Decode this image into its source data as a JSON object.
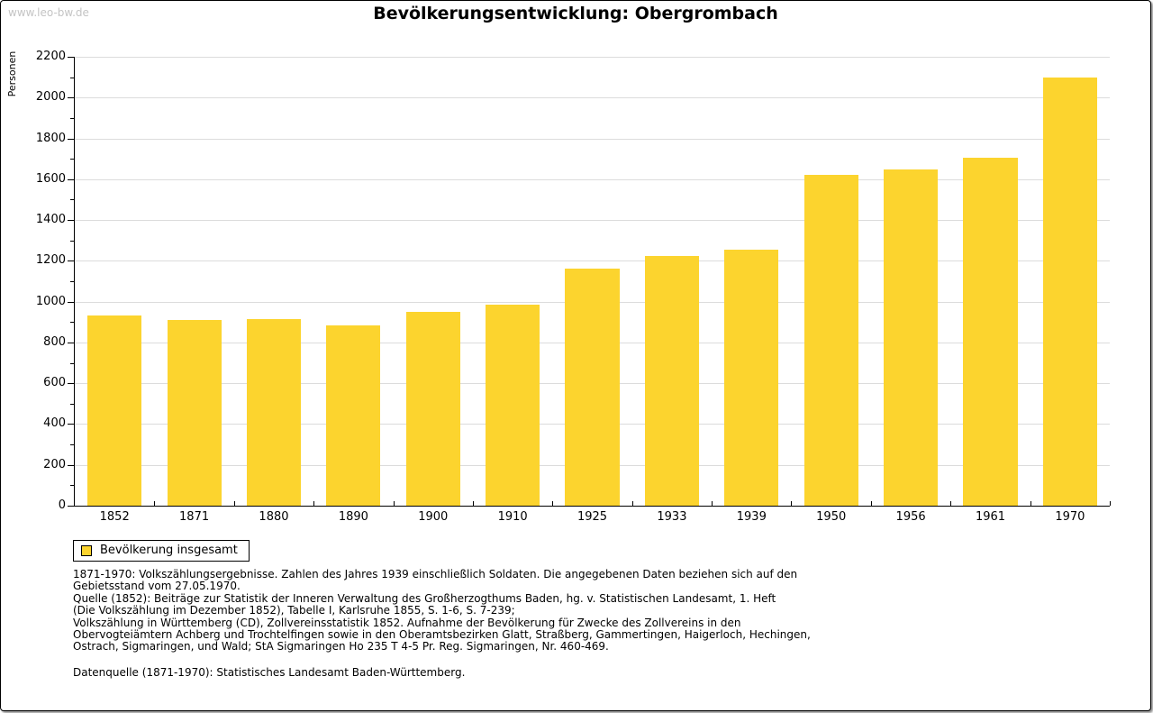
{
  "watermark": "www.leo-bw.de",
  "title": "Bevölkerungsentwicklung: Obergrombach",
  "chart_data": {
    "type": "bar",
    "title": "Bevölkerungsentwicklung: Obergrombach",
    "categories": [
      "1852",
      "1871",
      "1880",
      "1890",
      "1900",
      "1910",
      "1925",
      "1933",
      "1939",
      "1950",
      "1956",
      "1961",
      "1970"
    ],
    "values": [
      930,
      910,
      915,
      885,
      950,
      985,
      1160,
      1225,
      1255,
      1620,
      1650,
      1705,
      2100
    ],
    "series_name": "Bevölkerung insgesamt",
    "xlabel": "",
    "ylabel": "Personen",
    "ylim": [
      0,
      2200
    ],
    "y_major_step": 200,
    "y_minor_step": 100,
    "grid": true,
    "legend_position": "bottom-left",
    "bar_color": "#FCD42E",
    "legend_label": "Bevölkerung insgesamt"
  },
  "colors": {
    "bar": "#FCD42E",
    "gridline": "#DCDCDC",
    "axis": "#000000",
    "watermark_text": "#C4C4C4"
  },
  "footnotes": {
    "lines": [
      "1871-1970: Volkszählungsergebnisse. Zahlen des Jahres 1939 einschließlich Soldaten. Die angegebenen Daten beziehen sich auf den",
      "Gebietsstand vom 27.05.1970.",
      "Quelle (1852): Beiträge zur Statistik der Inneren Verwaltung des Großherzogthums Baden, hg. v. Statistischen Landesamt, 1. Heft",
      "(Die Volkszählung im Dezember 1852), Tabelle I, Karlsruhe 1855, S. 1-6, S. 7-239;",
      "Volkszählung in Württemberg (CD), Zollvereinsstatistik 1852. Aufnahme der Bevölkerung für Zwecke des Zollvereins in den",
      "Obervogteiämtern Achberg und Trochtelfingen sowie in den Oberamtsbezirken Glatt, Straßberg, Gammertingen, Haigerloch, Hechingen,",
      "Ostrach, Sigmaringen, und Wald; StA Sigmaringen Ho 235 T 4-5 Pr. Reg. Sigmaringen, Nr. 460-469."
    ],
    "source": "Datenquelle (1871-1970): Statistisches Landesamt Baden-Württemberg."
  }
}
